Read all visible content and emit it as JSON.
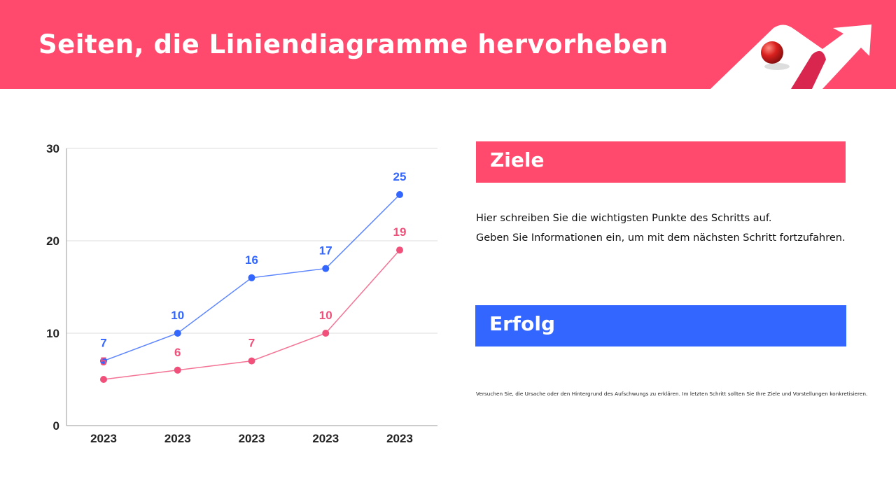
{
  "header": {
    "title": "Seiten, die Liniendiagramme hervorheben",
    "accent": "#ff4a6e"
  },
  "chart_data": {
    "type": "line",
    "categories": [
      "2023",
      "2023",
      "2023",
      "2023",
      "2023"
    ],
    "series": [
      {
        "values": [
          7,
          10,
          16,
          17,
          25
        ],
        "color": "#3366ff"
      },
      {
        "values": [
          5,
          6,
          7,
          10,
          19
        ],
        "color": "#f0507a"
      }
    ],
    "ylim": [
      0,
      30
    ],
    "yticks": [
      "0",
      "10",
      "20",
      "30"
    ],
    "grid": true
  },
  "panels": {
    "goals_title": "Ziele",
    "goals_lines": [
      "Hier schreiben Sie die wichtigsten Punkte des Schritts auf.",
      "Geben Sie Informationen ein, um mit dem nächsten Schritt fortzufahren."
    ],
    "success_title": "Erfolg",
    "success_text": "Versuchen Sie, die Ursache oder den Hintergrund des Aufschwungs zu erklären. Im letzten Schritt sollten Sie Ihre Ziele und Vorstellungen konkretisieren."
  }
}
